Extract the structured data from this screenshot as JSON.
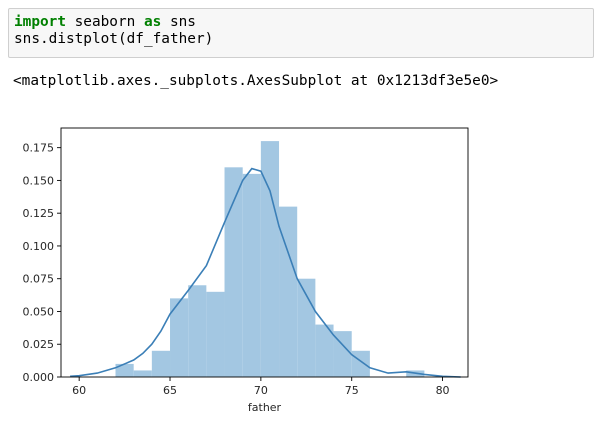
{
  "cell": {
    "line1": {
      "kw_import": "import",
      "module": " seaborn ",
      "kw_as": "as",
      "alias": " sns"
    },
    "line2": "sns.distplot(df_father)"
  },
  "output": {
    "repr": "<matplotlib.axes._subplots.AxesSubplot at 0x1213df3e5e0>"
  },
  "chart_data": {
    "type": "bar",
    "title": "",
    "xlabel": "father",
    "ylabel": "",
    "xlim": [
      59,
      81.4
    ],
    "ylim": [
      0,
      0.19
    ],
    "x_ticks": [
      60,
      65,
      70,
      75,
      80
    ],
    "x_tick_labels": [
      "60",
      "65",
      "70",
      "75",
      "80"
    ],
    "y_ticks": [
      0,
      0.025,
      0.05,
      0.075,
      0.1,
      0.125,
      0.15,
      0.175
    ],
    "y_tick_labels": [
      "0.000",
      "0.025",
      "0.050",
      "0.075",
      "0.100",
      "0.125",
      "0.150",
      "0.175"
    ],
    "bin_edges": [
      62,
      63,
      64,
      65,
      66,
      67,
      68,
      69,
      70,
      71,
      72,
      73,
      74,
      75,
      76,
      77,
      78,
      79
    ],
    "hist_values": [
      0.01,
      0.005,
      0.02,
      0.06,
      0.07,
      0.065,
      0.16,
      0.155,
      0.18,
      0.13,
      0.075,
      0.04,
      0.035,
      0.02,
      0,
      0,
      0.005
    ],
    "kde_x": [
      59.5,
      60,
      61,
      62,
      63,
      63.5,
      64,
      64.5,
      65,
      66,
      67,
      68,
      69,
      69.5,
      70,
      70.5,
      71,
      71.5,
      72,
      73,
      74,
      75,
      76,
      77,
      78,
      79,
      80,
      81
    ],
    "kde_y": [
      0.0005,
      0.001,
      0.003,
      0.007,
      0.013,
      0.018,
      0.025,
      0.035,
      0.048,
      0.066,
      0.085,
      0.118,
      0.15,
      0.159,
      0.157,
      0.142,
      0.115,
      0.095,
      0.075,
      0.05,
      0.032,
      0.017,
      0.007,
      0.003,
      0.004,
      0.002,
      0.0005,
      0
    ],
    "colors": {
      "bars": "#a3c7e2",
      "kde": "#3b7fb7",
      "axes": "#000000",
      "text": "#262626"
    }
  }
}
